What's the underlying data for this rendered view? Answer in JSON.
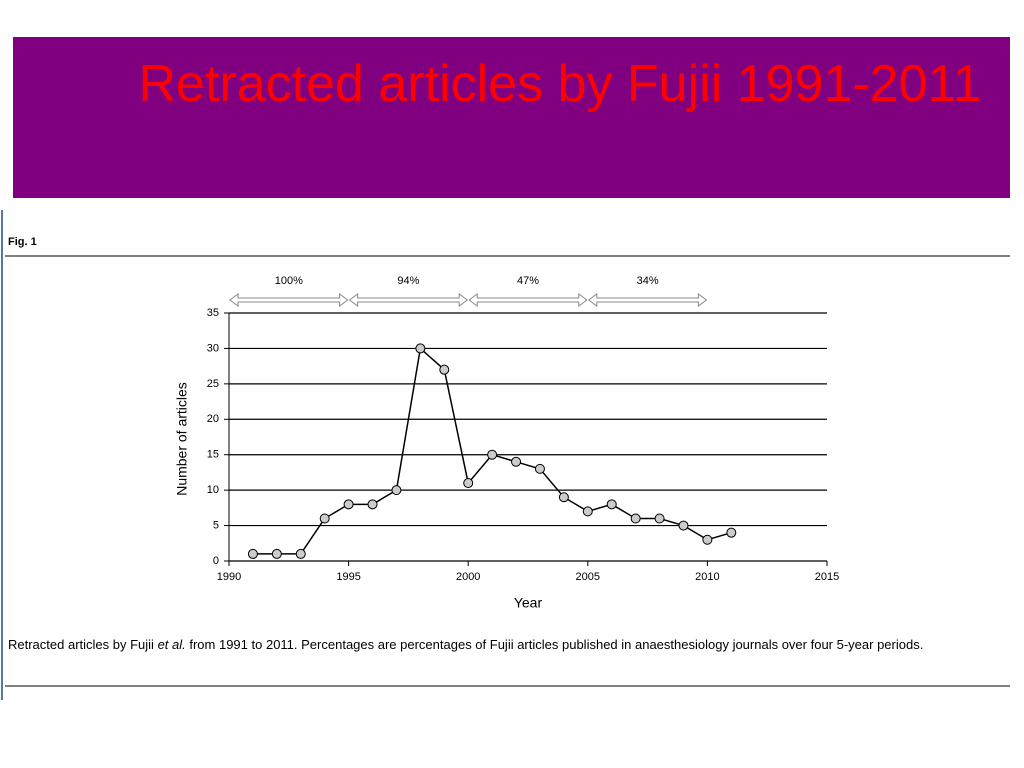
{
  "slide_title": "Retracted articles by Fujii 1991-2011",
  "figure_label": "Fig. 1",
  "caption": {
    "before": "Retracted articles by Fujii ",
    "italic": "et al.",
    "after": " from 1991 to 2011. Percentages are percentages of Fujii articles published in anaesthesiology journals over four 5-year periods."
  },
  "chart_data": {
    "type": "line",
    "x": [
      1991,
      1992,
      1993,
      1994,
      1995,
      1996,
      1997,
      1998,
      1999,
      2000,
      2001,
      2002,
      2003,
      2004,
      2005,
      2006,
      2007,
      2008,
      2009,
      2010,
      2011
    ],
    "values": [
      1,
      1,
      1,
      6,
      8,
      8,
      10,
      30,
      27,
      11,
      15,
      14,
      13,
      9,
      7,
      8,
      6,
      6,
      5,
      3,
      4
    ],
    "color": "#000000",
    "marker_color": "#cccccc",
    "xlabel": "Year",
    "ylabel": "Number of articles",
    "xlim": [
      1990,
      2015
    ],
    "xticks": [
      1990,
      1995,
      2000,
      2005,
      2010,
      2015
    ],
    "ylim": [
      0,
      35
    ],
    "yticks": [
      0,
      5,
      10,
      15,
      20,
      25,
      30,
      35
    ],
    "grid": true,
    "periods": [
      {
        "label": "100%",
        "start": 1990,
        "end": 1995
      },
      {
        "label": "94%",
        "start": 1995,
        "end": 2000
      },
      {
        "label": "47%",
        "start": 2000,
        "end": 2005
      },
      {
        "label": "34%",
        "start": 2005,
        "end": 2010
      }
    ]
  }
}
